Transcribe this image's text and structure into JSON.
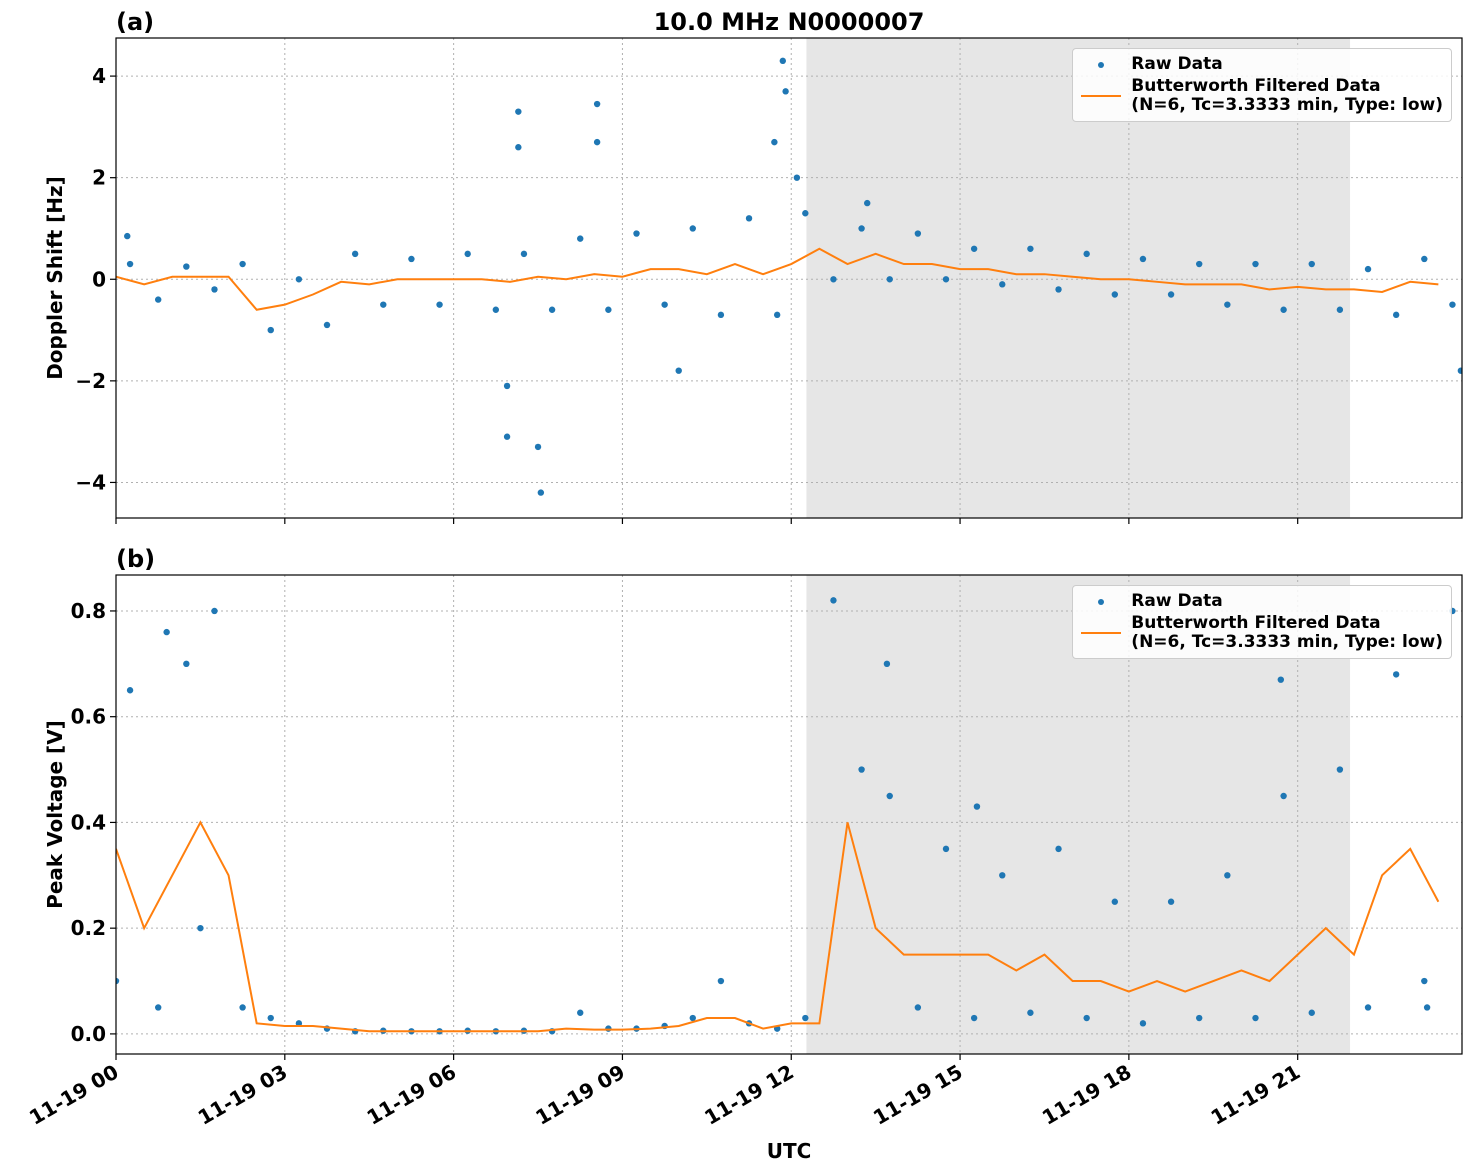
{
  "chart_data": [
    {
      "type": "scatter-line",
      "panel_label": "(a)",
      "title": "10.0 MHz N0000007",
      "y_label": "Doppler Shift [Hz]",
      "xlim": [
        0,
        23.92
      ],
      "ylim": [
        -4.7,
        4.75
      ],
      "grid": true,
      "legend": "upper right",
      "shade": [
        12.27,
        21.93
      ],
      "shade_color": "#e6e6e6",
      "xticks": [
        0,
        3,
        6,
        9,
        12,
        15,
        18,
        21
      ],
      "xticklabels": false,
      "yticks": [
        {
          "value": -4,
          "label": "−4"
        },
        {
          "value": -2,
          "label": "−2"
        },
        0,
        2,
        4
      ],
      "series": [
        {
          "name": "Raw Data",
          "mark": "dot",
          "color": "#1f77b4",
          "x": [
            0.25,
            0.75,
            1.25,
            1.75,
            2.25,
            2.75,
            3.25,
            3.75,
            4.25,
            4.75,
            5.25,
            5.75,
            6.25,
            6.75,
            7.25,
            7.75,
            8.25,
            8.75,
            9.25,
            9.75,
            10.25,
            10.75,
            11.25,
            11.75,
            12.25,
            12.75,
            13.25,
            13.75,
            14.25,
            14.75,
            15.25,
            15.75,
            16.25,
            16.75,
            17.25,
            17.75,
            18.25,
            18.75,
            19.25,
            19.75,
            20.25,
            20.75,
            21.25,
            21.75,
            22.25,
            22.75,
            23.25,
            23.75,
            7.15,
            7.15,
            6.95,
            7.55,
            7.5,
            8.55,
            8.55,
            11.85,
            11.9,
            11.7,
            12.1,
            13.35,
            6.95,
            10,
            0.2,
            23.9
          ],
          "values": [
            0.3,
            -0.4,
            0.25,
            -0.2,
            0.3,
            -1.0,
            0.0,
            -0.9,
            0.5,
            -0.5,
            0.4,
            -0.5,
            0.5,
            -0.6,
            0.5,
            -0.6,
            0.8,
            -0.6,
            0.9,
            -0.5,
            1.0,
            -0.7,
            1.2,
            -0.7,
            1.3,
            0.0,
            1.0,
            0.0,
            0.9,
            0.0,
            0.6,
            -0.1,
            0.6,
            -0.2,
            0.5,
            -0.3,
            0.4,
            -0.3,
            0.3,
            -0.5,
            0.3,
            -0.6,
            0.3,
            -0.6,
            0.2,
            -0.7,
            0.4,
            -0.5,
            3.3,
            2.6,
            -3.1,
            -4.2,
            -3.3,
            3.45,
            2.7,
            4.3,
            3.7,
            2.7,
            2.0,
            1.5,
            -2.1,
            -1.8,
            0.85,
            -1.8
          ]
        },
        {
          "name": "Butterworth Filtered Data\n(N=6, Tc=3.3333 min, Type: low)",
          "mark": "line",
          "color": "#ff7f0e",
          "x": [
            0,
            0.5,
            1,
            1.5,
            2,
            2.5,
            3,
            3.5,
            4,
            4.5,
            5,
            5.5,
            6,
            6.5,
            7,
            7.5,
            8,
            8.5,
            9,
            9.5,
            10,
            10.5,
            11,
            11.5,
            12,
            12.5,
            13,
            13.5,
            14,
            14.5,
            15,
            15.5,
            16,
            16.5,
            17,
            17.5,
            18,
            18.5,
            19,
            19.5,
            20,
            20.5,
            21,
            21.5,
            22,
            22.5,
            23,
            23.5
          ],
          "values": [
            0.05,
            -0.1,
            0.05,
            0.05,
            0.05,
            -0.6,
            -0.5,
            -0.3,
            -0.05,
            -0.1,
            0.0,
            0.0,
            0.0,
            0.0,
            -0.05,
            0.05,
            0.0,
            0.1,
            0.05,
            0.2,
            0.2,
            0.1,
            0.3,
            0.1,
            0.3,
            0.6,
            0.3,
            0.5,
            0.3,
            0.3,
            0.2,
            0.2,
            0.1,
            0.1,
            0.05,
            0.0,
            0.0,
            -0.05,
            -0.1,
            -0.1,
            -0.1,
            -0.2,
            -0.15,
            -0.2,
            -0.2,
            -0.25,
            -0.05,
            -0.1
          ]
        }
      ]
    },
    {
      "type": "scatter-line",
      "panel_label": "(b)",
      "y_label": "Peak Voltage [V]",
      "x_label": "UTC",
      "xlim": [
        0,
        23.92
      ],
      "ylim": [
        -0.038,
        0.868
      ],
      "grid": true,
      "legend": "upper right",
      "shade": [
        12.27,
        21.93
      ],
      "shade_color": "#e6e6e6",
      "xticks": [
        {
          "value": 0,
          "label": "11-19 00"
        },
        {
          "value": 3,
          "label": "11-19 03"
        },
        {
          "value": 6,
          "label": "11-19 06"
        },
        {
          "value": 9,
          "label": "11-19 09"
        },
        {
          "value": 12,
          "label": "11-19 12"
        },
        {
          "value": 15,
          "label": "11-19 15"
        },
        {
          "value": 18,
          "label": "11-19 18"
        },
        {
          "value": 21,
          "label": "11-19 21"
        }
      ],
      "xticklabels": true,
      "yticks": [
        {
          "value": 0,
          "label": "0.0"
        },
        0.2,
        0.4,
        0.6,
        0.8
      ],
      "series": [
        {
          "name": "Raw Data",
          "mark": "dot",
          "color": "#1f77b4",
          "x": [
            0.25,
            0.75,
            1.25,
            1.75,
            2.25,
            2.75,
            3.25,
            3.75,
            4.25,
            4.75,
            5.25,
            5.75,
            6.25,
            6.75,
            7.25,
            7.75,
            8.25,
            8.75,
            9.25,
            9.75,
            10.25,
            10.75,
            11.25,
            11.75,
            12.25,
            12.75,
            13.25,
            13.75,
            14.25,
            14.75,
            15.25,
            15.75,
            16.25,
            16.75,
            17.25,
            17.75,
            18.25,
            18.75,
            19.25,
            19.75,
            20.25,
            20.75,
            21.25,
            21.75,
            22.25,
            22.75,
            23.25,
            23.75,
            0,
            0.9,
            1.5,
            13.7,
            15.3,
            20.7,
            23.3
          ],
          "values": [
            0.65,
            0.05,
            0.7,
            0.8,
            0.05,
            0.03,
            0.02,
            0.01,
            0.005,
            0.006,
            0.005,
            0.005,
            0.006,
            0.005,
            0.006,
            0.005,
            0.04,
            0.01,
            0.01,
            0.015,
            0.03,
            0.1,
            0.02,
            0.01,
            0.03,
            0.82,
            0.5,
            0.45,
            0.05,
            0.35,
            0.03,
            0.3,
            0.04,
            0.35,
            0.03,
            0.25,
            0.02,
            0.25,
            0.03,
            0.3,
            0.03,
            0.45,
            0.04,
            0.5,
            0.05,
            0.68,
            0.1,
            0.8,
            0.1,
            0.76,
            0.2,
            0.7,
            0.43,
            0.67,
            0.05
          ]
        },
        {
          "name": "Butterworth Filtered Data\n(N=6, Tc=3.3333 min, Type: low)",
          "mark": "line",
          "color": "#ff7f0e",
          "x": [
            0,
            0.5,
            1,
            1.5,
            2,
            2.5,
            3,
            3.5,
            4,
            4.5,
            5,
            5.5,
            6,
            6.5,
            7,
            7.5,
            8,
            8.5,
            9,
            9.5,
            10,
            10.5,
            11,
            11.5,
            12,
            12.5,
            13,
            13.5,
            14,
            14.5,
            15,
            15.5,
            16,
            16.5,
            17,
            17.5,
            18,
            18.5,
            19,
            19.5,
            20,
            20.5,
            21,
            21.5,
            22,
            22.5,
            23,
            23.5
          ],
          "values": [
            0.35,
            0.2,
            0.3,
            0.4,
            0.3,
            0.02,
            0.015,
            0.015,
            0.01,
            0.005,
            0.005,
            0.005,
            0.005,
            0.005,
            0.005,
            0.005,
            0.01,
            0.008,
            0.008,
            0.01,
            0.015,
            0.03,
            0.03,
            0.01,
            0.02,
            0.02,
            0.4,
            0.2,
            0.15,
            0.15,
            0.15,
            0.15,
            0.12,
            0.15,
            0.1,
            0.1,
            0.08,
            0.1,
            0.08,
            0.1,
            0.12,
            0.1,
            0.15,
            0.2,
            0.15,
            0.3,
            0.35,
            0.25
          ]
        }
      ]
    }
  ]
}
